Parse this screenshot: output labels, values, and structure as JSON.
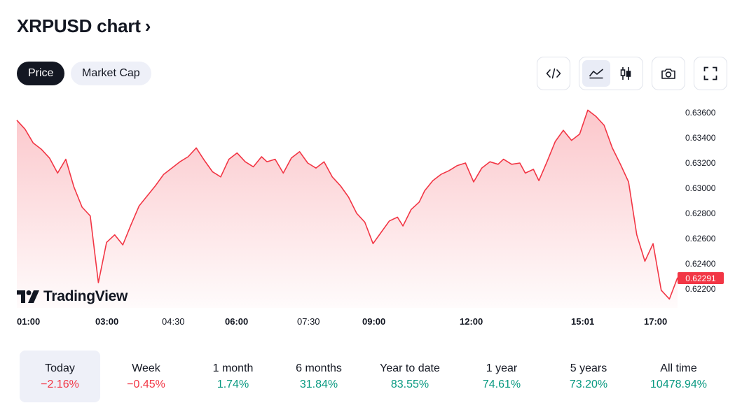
{
  "header": {
    "title": "XRPUSD chart",
    "chevron": "›"
  },
  "tabs": [
    {
      "label": "Price",
      "active": true
    },
    {
      "label": "Market Cap",
      "active": false
    }
  ],
  "toolbar": {
    "embed_icon": "code-embed-icon",
    "line_icon": "area-chart-icon",
    "candle_icon": "candlestick-icon",
    "camera_icon": "camera-icon",
    "fullscreen_icon": "fullscreen-icon"
  },
  "brand": {
    "wordmark": "TradingView"
  },
  "chart_data": {
    "type": "area",
    "line_color": "#f23645",
    "fill_color": "#f23645",
    "y_ticks": [
      "0.63600",
      "0.63400",
      "0.63200",
      "0.63000",
      "0.62800",
      "0.62600",
      "0.62400",
      "0.62200"
    ],
    "ylim": [
      0.6212,
      0.6365
    ],
    "last_price": "0.62291",
    "x_ticks": [
      {
        "label": "01:00",
        "bold": true
      },
      {
        "label": "03:00",
        "bold": true
      },
      {
        "label": "04:30",
        "bold": false
      },
      {
        "label": "06:00",
        "bold": true
      },
      {
        "label": "07:30",
        "bold": false
      },
      {
        "label": "09:00",
        "bold": true
      },
      {
        "label": "12:00",
        "bold": true
      },
      {
        "label": "15:01",
        "bold": true
      },
      {
        "label": "17:00",
        "bold": true
      }
    ],
    "x": [
      0,
      0.3,
      0.6,
      0.9,
      1.2,
      1.5,
      1.8,
      2.1,
      2.4,
      2.7,
      3.0,
      3.3,
      3.6,
      3.9,
      4.2,
      4.5,
      4.8,
      5.1,
      5.4,
      5.7,
      6.0,
      6.3,
      6.6,
      6.9,
      7.2,
      7.5,
      7.8,
      8.1,
      8.4,
      8.7,
      9.0,
      9.2,
      9.5,
      9.8,
      10.1,
      10.4,
      10.7,
      11.0,
      11.3,
      11.6,
      11.9,
      12.2,
      12.5,
      12.8,
      13.1,
      13.4,
      13.7,
      14.0,
      14.2,
      14.5,
      14.8,
      15.0,
      15.3,
      15.6,
      15.9,
      16.2,
      16.5,
      16.8,
      17.1,
      17.4,
      17.7,
      17.9,
      18.2,
      18.5,
      18.7,
      19.0,
      19.2,
      19.5,
      19.8,
      20.1,
      20.4,
      20.7,
      21.0,
      21.3,
      21.6,
      21.9,
      22.2,
      22.5,
      22.8,
      23.1,
      23.4,
      23.7,
      24.0,
      24.3
    ],
    "y": [
      0.6354,
      0.6347,
      0.6336,
      0.6331,
      0.6324,
      0.6312,
      0.6323,
      0.6301,
      0.6285,
      0.6278,
      0.6225,
      0.6257,
      0.6263,
      0.6255,
      0.6271,
      0.6286,
      0.6294,
      0.6302,
      0.6311,
      0.6316,
      0.6321,
      0.6325,
      0.6332,
      0.6322,
      0.6313,
      0.6309,
      0.6323,
      0.6328,
      0.6321,
      0.6317,
      0.6325,
      0.6321,
      0.6323,
      0.6312,
      0.6324,
      0.6329,
      0.632,
      0.6316,
      0.6321,
      0.6309,
      0.6302,
      0.6293,
      0.628,
      0.6273,
      0.6256,
      0.6265,
      0.6274,
      0.6277,
      0.627,
      0.6283,
      0.6289,
      0.6298,
      0.6306,
      0.6311,
      0.6314,
      0.6318,
      0.632,
      0.6305,
      0.6316,
      0.6321,
      0.6319,
      0.6323,
      0.6319,
      0.632,
      0.6312,
      0.6315,
      0.6306,
      0.6321,
      0.6337,
      0.6346,
      0.6338,
      0.6343,
      0.6362,
      0.6357,
      0.635,
      0.6332,
      0.6319,
      0.6305,
      0.6263,
      0.6242,
      0.6256,
      0.6219,
      0.6212,
      0.6229
    ]
  },
  "periods": [
    {
      "label": "Today",
      "value": "−2.16%",
      "trend": "neg",
      "active": true
    },
    {
      "label": "Week",
      "value": "−0.45%",
      "trend": "neg",
      "active": false
    },
    {
      "label": "1 month",
      "value": "1.74%",
      "trend": "pos",
      "active": false
    },
    {
      "label": "6 months",
      "value": "31.84%",
      "trend": "pos",
      "active": false
    },
    {
      "label": "Year to date",
      "value": "83.55%",
      "trend": "pos",
      "active": false
    },
    {
      "label": "1 year",
      "value": "74.61%",
      "trend": "pos",
      "active": false
    },
    {
      "label": "5 years",
      "value": "73.20%",
      "trend": "pos",
      "active": false
    },
    {
      "label": "All time",
      "value": "10478.94%",
      "trend": "pos",
      "active": false
    }
  ]
}
